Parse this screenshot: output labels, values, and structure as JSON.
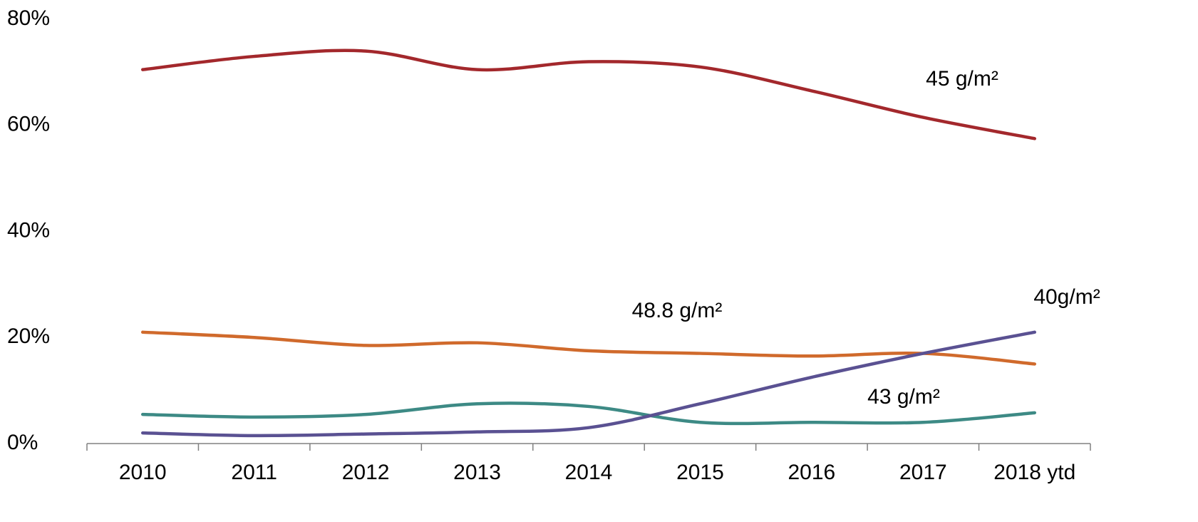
{
  "chart_data": {
    "type": "line",
    "categories": [
      "2010",
      "2011",
      "2012",
      "2013",
      "2014",
      "2015",
      "2016",
      "2017",
      "2018 ytd"
    ],
    "series": [
      {
        "color": "#a3282c",
        "values": [
          70.5,
          73,
          74,
          70.5,
          72,
          71,
          66.5,
          61.5,
          57.5
        ]
      },
      {
        "color": "#d06a2c",
        "values": [
          21,
          20,
          18.5,
          19,
          17.5,
          17,
          16.5,
          17,
          15
        ]
      },
      {
        "color": "#3d8a85",
        "values": [
          5.5,
          5,
          5.5,
          7.5,
          7,
          4,
          4,
          4,
          5.8
        ]
      },
      {
        "color": "#5a5192",
        "values": [
          2,
          1.5,
          1.8,
          2.2,
          3,
          7.5,
          12.5,
          17,
          21
        ]
      }
    ],
    "annotations": [
      "45 g/m²",
      "48.8 g/m²",
      "40g/m²",
      "43 g/m²"
    ],
    "ylim": [
      0,
      80
    ],
    "yticks": [
      {
        "value": 0,
        "label": "0%"
      },
      {
        "value": 20,
        "label": "20%"
      },
      {
        "value": 40,
        "label": "40%"
      },
      {
        "value": 60,
        "label": "60%"
      },
      {
        "value": 80,
        "label": "80%"
      }
    ],
    "grid": false
  }
}
